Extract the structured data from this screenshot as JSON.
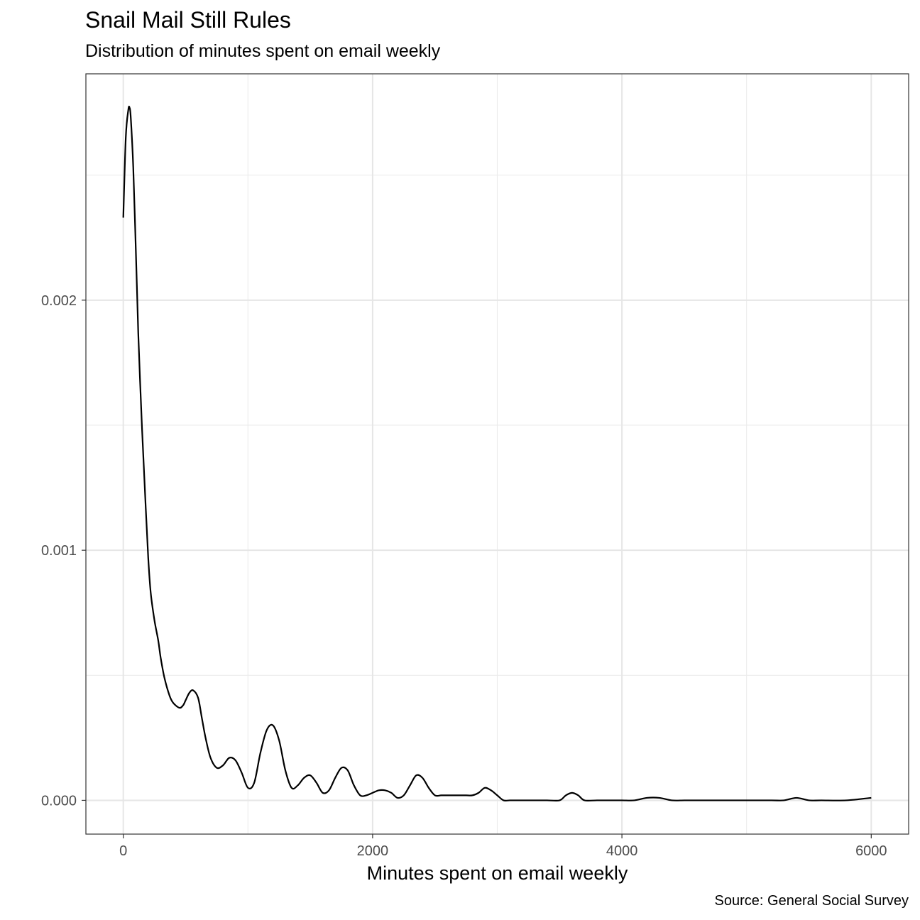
{
  "chart_data": {
    "type": "area",
    "title": "Snail Mail Still Rules",
    "subtitle": "Distribution of minutes spent on email weekly",
    "xlabel": "Minutes spent on email weekly",
    "ylabel": "",
    "caption": "Source: General Social Survey",
    "xlim": [
      -300,
      6300
    ],
    "ylim": [
      -0.000135,
      0.002905
    ],
    "x_ticks": [
      0,
      2000,
      4000,
      6000
    ],
    "x_tick_labels": [
      "0",
      "2000",
      "4000",
      "6000"
    ],
    "y_ticks": [
      0,
      0.001,
      0.002
    ],
    "y_tick_labels": [
      "0.000",
      "0.001",
      "0.002"
    ],
    "grid": true,
    "legend": "none",
    "line_color": "#000000",
    "series": [
      {
        "x": [
          0,
          20,
          40,
          50,
          60,
          80,
          100,
          120,
          150,
          180,
          200,
          220,
          250,
          280,
          300,
          330,
          370,
          400,
          450,
          480,
          500,
          530,
          560,
          600,
          630,
          660,
          700,
          750,
          800,
          850,
          900,
          950,
          1000,
          1050,
          1100,
          1150,
          1200,
          1250,
          1300,
          1350,
          1400,
          1450,
          1500,
          1550,
          1600,
          1650,
          1700,
          1750,
          1800,
          1850,
          1900,
          1950,
          2000,
          2050,
          2100,
          2150,
          2200,
          2250,
          2300,
          2350,
          2400,
          2450,
          2500,
          2550,
          2600,
          2650,
          2700,
          2750,
          2800,
          2850,
          2900,
          2950,
          3000,
          3050,
          3100,
          3150,
          3200,
          3300,
          3400,
          3500,
          3550,
          3600,
          3650,
          3700,
          3800,
          3900,
          4000,
          4100,
          4200,
          4300,
          4400,
          4500,
          4600,
          4700,
          4800,
          5000,
          5200,
          5300,
          5400,
          5500,
          5600,
          5800,
          6000
        ],
        "y": [
          0.00233,
          0.00265,
          0.00276,
          0.00277,
          0.00273,
          0.00253,
          0.00221,
          0.00187,
          0.00149,
          0.00117,
          0.00097,
          0.00083,
          0.00072,
          0.00064,
          0.00057,
          0.00049,
          0.00042,
          0.00039,
          0.00037,
          0.00038,
          0.0004,
          0.00043,
          0.00044,
          0.00041,
          0.00033,
          0.00025,
          0.00017,
          0.00013,
          0.00014,
          0.00017,
          0.00016,
          0.00011,
          5e-05,
          7e-05,
          0.00019,
          0.00028,
          0.0003,
          0.00024,
          0.00012,
          5e-05,
          6e-05,
          9e-05,
          0.0001,
          7e-05,
          3e-05,
          4e-05,
          9e-05,
          0.00013,
          0.00012,
          6e-05,
          2e-05,
          2e-05,
          3e-05,
          4e-05,
          4e-05,
          3e-05,
          1e-05,
          2e-05,
          6e-05,
          0.0001,
          9e-05,
          5e-05,
          2e-05,
          2e-05,
          2e-05,
          2e-05,
          2e-05,
          2e-05,
          2e-05,
          3e-05,
          5e-05,
          4e-05,
          2e-05,
          0.0,
          0.0,
          0.0,
          0.0,
          0.0,
          0.0,
          0.0,
          2e-05,
          3e-05,
          2e-05,
          0.0,
          0.0,
          0.0,
          0.0,
          0.0,
          1e-05,
          1e-05,
          0.0,
          0.0,
          0.0,
          0.0,
          0.0,
          0.0,
          0.0,
          0.0,
          1e-05,
          0.0,
          0.0,
          0.0,
          1e-05
        ]
      }
    ]
  }
}
